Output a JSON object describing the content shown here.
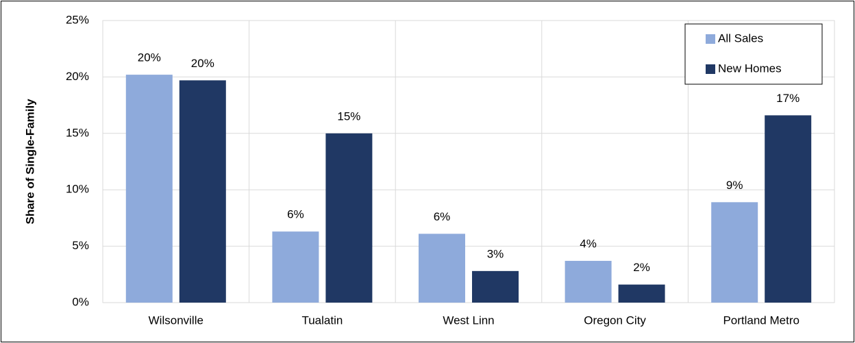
{
  "chart_data": {
    "type": "bar",
    "y_label": "Share of Single-Family",
    "categories": [
      "Wilsonville",
      "Tualatin",
      "West Linn",
      "Oregon City",
      "Portland Metro"
    ],
    "series": [
      {
        "name": "All Sales",
        "color": "#8eaadb",
        "values": [
          20.2,
          6.3,
          6.1,
          3.7,
          8.9
        ],
        "value_labels": [
          "20%",
          "6%",
          "6%",
          "4%",
          "9%"
        ]
      },
      {
        "name": "New Homes",
        "color": "#203864",
        "values": [
          19.7,
          15.0,
          2.8,
          1.6,
          16.6
        ],
        "value_labels": [
          "20%",
          "15%",
          "3%",
          "2%",
          "17%"
        ]
      }
    ],
    "ylim": [
      0,
      25
    ],
    "yticks": [
      {
        "value": 0,
        "label": "0%"
      },
      {
        "value": 5,
        "label": "5%"
      },
      {
        "value": 10,
        "label": "10%"
      },
      {
        "value": 15,
        "label": "15%"
      },
      {
        "value": 20,
        "label": "20%"
      },
      {
        "value": 25,
        "label": "25%"
      }
    ],
    "grid": true,
    "legend": "upper right"
  }
}
